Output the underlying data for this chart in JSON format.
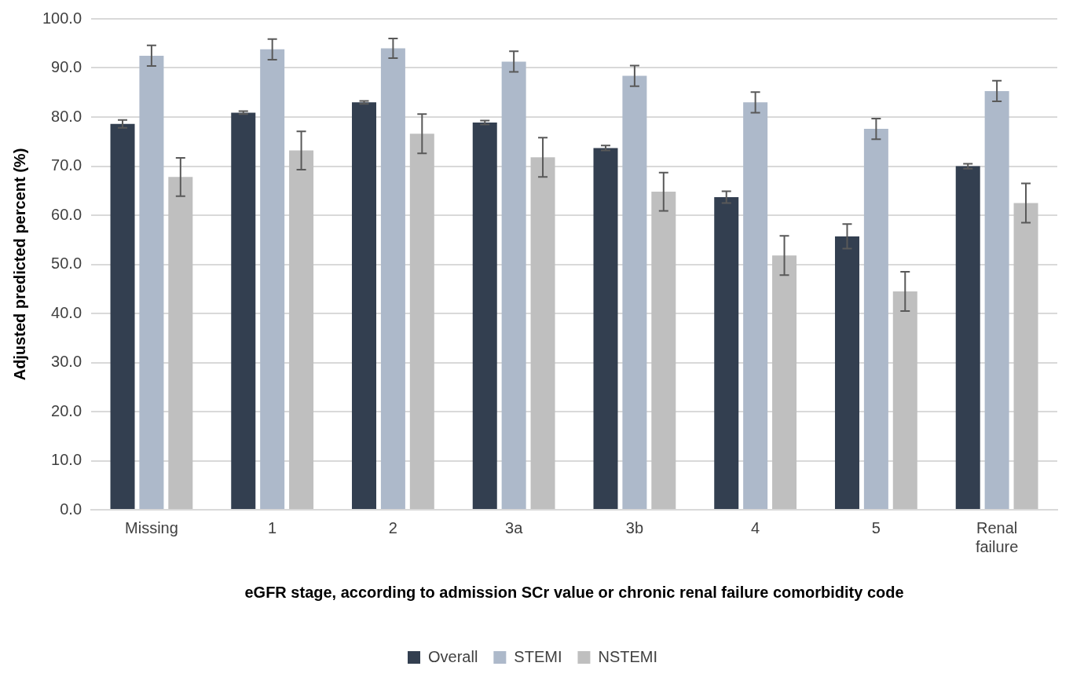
{
  "chart_data": {
    "type": "bar",
    "xlabel": "eGFR stage, according to admission SCr value or chronic renal failure comorbidity code",
    "ylabel": "Adjusted predicted percent (%)",
    "categories": [
      "Missing",
      "1",
      "2",
      "3a",
      "3b",
      "4",
      "5",
      "Renal failure"
    ],
    "series": [
      {
        "name": "Overall",
        "color": "#333f50",
        "values": [
          78.6,
          80.9,
          83.0,
          78.9,
          73.7,
          63.7,
          55.7,
          70.0
        ],
        "errors": [
          0.8,
          0.3,
          0.3,
          0.4,
          0.5,
          1.2,
          2.5,
          0.5
        ]
      },
      {
        "name": "STEMI",
        "color": "#adb9ca",
        "values": [
          92.5,
          93.8,
          94.0,
          91.3,
          88.4,
          83.0,
          77.6,
          85.3
        ],
        "errors": [
          2.1,
          2.1,
          2.0,
          2.1,
          2.1,
          2.1,
          2.1,
          2.1
        ]
      },
      {
        "name": "NSTEMI",
        "color": "#bfbfbf",
        "values": [
          67.8,
          73.2,
          76.6,
          71.8,
          64.8,
          51.8,
          44.5,
          62.5
        ],
        "errors": [
          3.9,
          3.9,
          4.0,
          4.0,
          3.9,
          4.0,
          4.0,
          4.0
        ]
      }
    ],
    "ylim": [
      0,
      100
    ],
    "yticks": [
      {
        "value": 0,
        "label": "0.0"
      },
      {
        "value": 10,
        "label": "10.0"
      },
      {
        "value": 20,
        "label": "20.0"
      },
      {
        "value": 30,
        "label": "30.0"
      },
      {
        "value": 40,
        "label": "40.0"
      },
      {
        "value": 50,
        "label": "50.0"
      },
      {
        "value": 60,
        "label": "60.0"
      },
      {
        "value": 70,
        "label": "70.0"
      },
      {
        "value": 80,
        "label": "80.0"
      },
      {
        "value": 90,
        "label": "90.0"
      },
      {
        "value": 100,
        "label": "100.0"
      }
    ],
    "grid": "y",
    "legend": "bottom"
  }
}
